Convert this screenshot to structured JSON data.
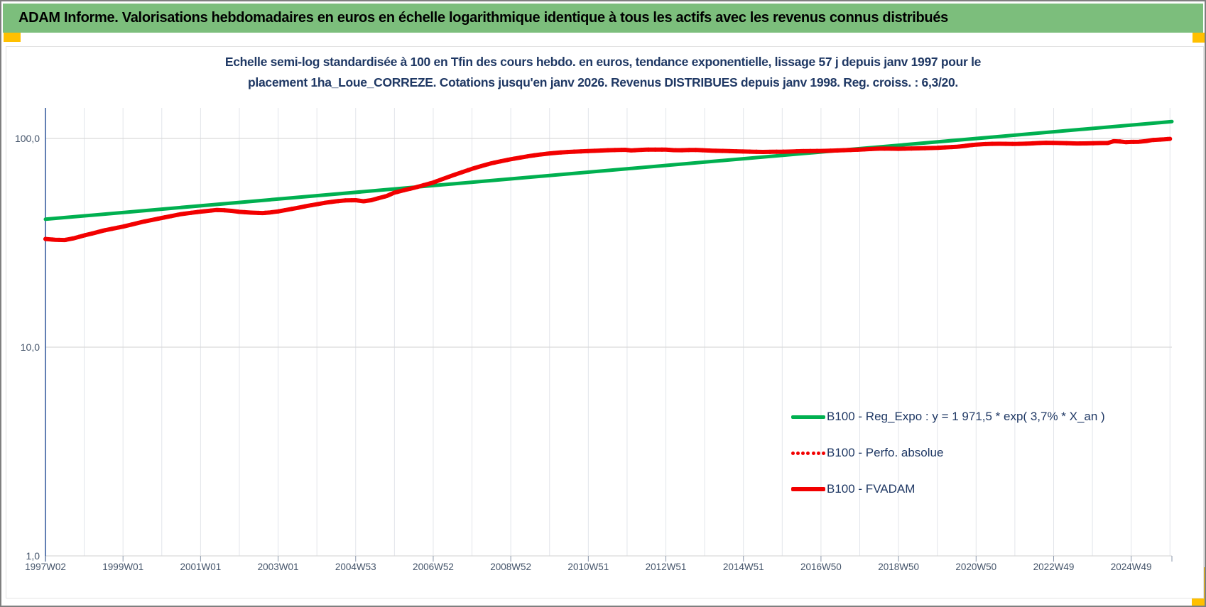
{
  "window": {
    "border_color": "#7f7f7f",
    "background": "#ffffff",
    "corner_marker_color": "#ffc000"
  },
  "header": {
    "title": "ADAM Informe. Valorisations hebdomadaires en euros en échelle logarithmique identique à tous les actifs avec les revenus connus distribués",
    "bg_color": "#7cbe7c",
    "text_color": "#000000"
  },
  "chart_data": {
    "type": "line",
    "title_lines": [
      "Echelle semi-log standardisée à 100 en Tfin des cours hebdo. en euros, tendance exponentielle, lissage 57 j depuis janv 1997 pour le",
      "placement 1ha_Loue_CORREZE. Cotations jusqu'en janv 2026. Revenus DISTRIBUES depuis janv 1998. Reg. croiss. : 6,3/20."
    ],
    "title_color": "#1f3864",
    "x_axis": {
      "tick_labels": [
        "1997W02",
        "1999W01",
        "2001W01",
        "2003W01",
        "2004W53",
        "2006W52",
        "2008W52",
        "2010W51",
        "2012W51",
        "2014W51",
        "2016W50",
        "2018W50",
        "2020W50",
        "2022W49",
        "2024W49"
      ],
      "range_years": [
        1997.0,
        2026.05
      ],
      "gridlines": "yearly",
      "gridline_color": "#e2e5ea",
      "axis_line_color": "#3a5fa0"
    },
    "y_axis": {
      "scale": "log10",
      "tick_labels": [
        "100,0",
        "10,0",
        "1,0"
      ],
      "tick_values": [
        100,
        10,
        1
      ],
      "range": [
        1,
        150
      ],
      "gridline_color": "#d9d9d9",
      "label_color": "#44546a"
    },
    "legend": {
      "position": "inside-lower-right",
      "items": [
        {
          "label": "B100 - Reg_Expo : y = 1 971,5 * exp( 3,7% *  X_an )",
          "color": "#00b050",
          "style": "solid"
        },
        {
          "label": "B100 - Perfo. absolue",
          "color": "#f20000",
          "style": "dotted"
        },
        {
          "label": "B100 - FVADAM",
          "color": "#f20000",
          "style": "solid"
        }
      ]
    },
    "series": [
      {
        "name": "B100 - Reg_Expo",
        "color": "#00b050",
        "style": "solid",
        "width": 5,
        "points": [
          [
            1997.0,
            41.0
          ],
          [
            2026.05,
            120.5
          ]
        ]
      },
      {
        "name": "B100 - Perfo. absolue",
        "color": "#f20000",
        "style": "dotted",
        "width": 6,
        "points_ref": "B100 - FVADAM",
        "note": "coincides with B100 - FVADAM, hidden beneath it"
      },
      {
        "name": "B100 - FVADAM",
        "color": "#f20000",
        "style": "solid",
        "width": 6,
        "points": [
          [
            1997.0,
            33.0
          ],
          [
            1997.25,
            32.7
          ],
          [
            1997.5,
            32.6
          ],
          [
            1997.75,
            33.3
          ],
          [
            1998.0,
            34.3
          ],
          [
            1998.25,
            35.2
          ],
          [
            1998.5,
            36.2
          ],
          [
            1998.75,
            37.0
          ],
          [
            1999.0,
            37.8
          ],
          [
            1999.25,
            38.8
          ],
          [
            1999.5,
            39.8
          ],
          [
            1999.75,
            40.7
          ],
          [
            2000.0,
            41.6
          ],
          [
            2000.25,
            42.5
          ],
          [
            2000.5,
            43.4
          ],
          [
            2000.75,
            44.0
          ],
          [
            2001.0,
            44.6
          ],
          [
            2001.2,
            45.0
          ],
          [
            2001.4,
            45.4
          ],
          [
            2001.6,
            45.3
          ],
          [
            2001.8,
            45.0
          ],
          [
            2002.0,
            44.5
          ],
          [
            2002.3,
            44.1
          ],
          [
            2002.6,
            43.9
          ],
          [
            2002.8,
            44.2
          ],
          [
            2003.0,
            44.7
          ],
          [
            2003.25,
            45.6
          ],
          [
            2003.5,
            46.5
          ],
          [
            2003.75,
            47.5
          ],
          [
            2004.0,
            48.4
          ],
          [
            2004.25,
            49.3
          ],
          [
            2004.5,
            50.0
          ],
          [
            2004.75,
            50.5
          ],
          [
            2005.0,
            50.6
          ],
          [
            2005.2,
            50.0
          ],
          [
            2005.4,
            50.6
          ],
          [
            2005.6,
            51.8
          ],
          [
            2005.8,
            53.0
          ],
          [
            2006.0,
            55.0
          ],
          [
            2006.25,
            56.5
          ],
          [
            2006.5,
            58.0
          ],
          [
            2006.75,
            59.7
          ],
          [
            2007.0,
            61.5
          ],
          [
            2007.25,
            64.0
          ],
          [
            2007.5,
            66.5
          ],
          [
            2007.75,
            69.0
          ],
          [
            2008.0,
            71.5
          ],
          [
            2008.25,
            73.8
          ],
          [
            2008.5,
            76.0
          ],
          [
            2008.75,
            77.8
          ],
          [
            2009.0,
            79.5
          ],
          [
            2009.25,
            81.0
          ],
          [
            2009.5,
            82.5
          ],
          [
            2009.75,
            83.7
          ],
          [
            2010.0,
            84.8
          ],
          [
            2010.25,
            85.6
          ],
          [
            2010.5,
            86.2
          ],
          [
            2010.75,
            86.6
          ],
          [
            2011.0,
            87.0
          ],
          [
            2011.25,
            87.4
          ],
          [
            2011.5,
            87.8
          ],
          [
            2011.75,
            88.1
          ],
          [
            2011.95,
            88.2
          ],
          [
            2012.1,
            87.6
          ],
          [
            2012.3,
            88.0
          ],
          [
            2012.5,
            88.4
          ],
          [
            2012.75,
            88.4
          ],
          [
            2013.0,
            88.4
          ],
          [
            2013.2,
            87.9
          ],
          [
            2013.4,
            87.8
          ],
          [
            2013.6,
            88.0
          ],
          [
            2013.8,
            88.0
          ],
          [
            2014.0,
            87.7
          ],
          [
            2014.2,
            87.4
          ],
          [
            2014.4,
            87.2
          ],
          [
            2014.6,
            87.0
          ],
          [
            2014.8,
            86.8
          ],
          [
            2015.0,
            86.6
          ],
          [
            2015.25,
            86.4
          ],
          [
            2015.5,
            86.2
          ],
          [
            2015.75,
            86.3
          ],
          [
            2016.0,
            86.4
          ],
          [
            2016.25,
            86.6
          ],
          [
            2016.5,
            86.9
          ],
          [
            2016.75,
            87.0
          ],
          [
            2017.0,
            87.1
          ],
          [
            2017.25,
            87.4
          ],
          [
            2017.5,
            87.7
          ],
          [
            2017.75,
            88.0
          ],
          [
            2018.0,
            88.4
          ],
          [
            2018.25,
            88.9
          ],
          [
            2018.5,
            89.3
          ],
          [
            2018.75,
            89.3
          ],
          [
            2019.0,
            89.2
          ],
          [
            2019.25,
            89.4
          ],
          [
            2019.5,
            89.6
          ],
          [
            2019.75,
            89.9
          ],
          [
            2020.0,
            90.2
          ],
          [
            2020.25,
            90.7
          ],
          [
            2020.5,
            91.2
          ],
          [
            2020.7,
            92.0
          ],
          [
            2020.85,
            92.8
          ],
          [
            2021.0,
            93.4
          ],
          [
            2021.2,
            93.9
          ],
          [
            2021.4,
            94.2
          ],
          [
            2021.6,
            94.3
          ],
          [
            2021.8,
            94.2
          ],
          [
            2022.0,
            94.1
          ],
          [
            2022.2,
            94.3
          ],
          [
            2022.4,
            94.6
          ],
          [
            2022.6,
            95.0
          ],
          [
            2022.8,
            95.3
          ],
          [
            2023.0,
            95.2
          ],
          [
            2023.2,
            95.0
          ],
          [
            2023.4,
            94.8
          ],
          [
            2023.6,
            94.6
          ],
          [
            2023.8,
            94.7
          ],
          [
            2024.0,
            94.8
          ],
          [
            2024.2,
            95.0
          ],
          [
            2024.4,
            95.1
          ],
          [
            2024.55,
            97.0
          ],
          [
            2024.7,
            96.8
          ],
          [
            2024.85,
            96.0
          ],
          [
            2025.0,
            96.2
          ],
          [
            2025.2,
            96.4
          ],
          [
            2025.4,
            97.2
          ],
          [
            2025.55,
            98.3
          ],
          [
            2025.7,
            98.6
          ],
          [
            2025.85,
            99.0
          ],
          [
            2026.0,
            99.5
          ]
        ]
      }
    ]
  }
}
